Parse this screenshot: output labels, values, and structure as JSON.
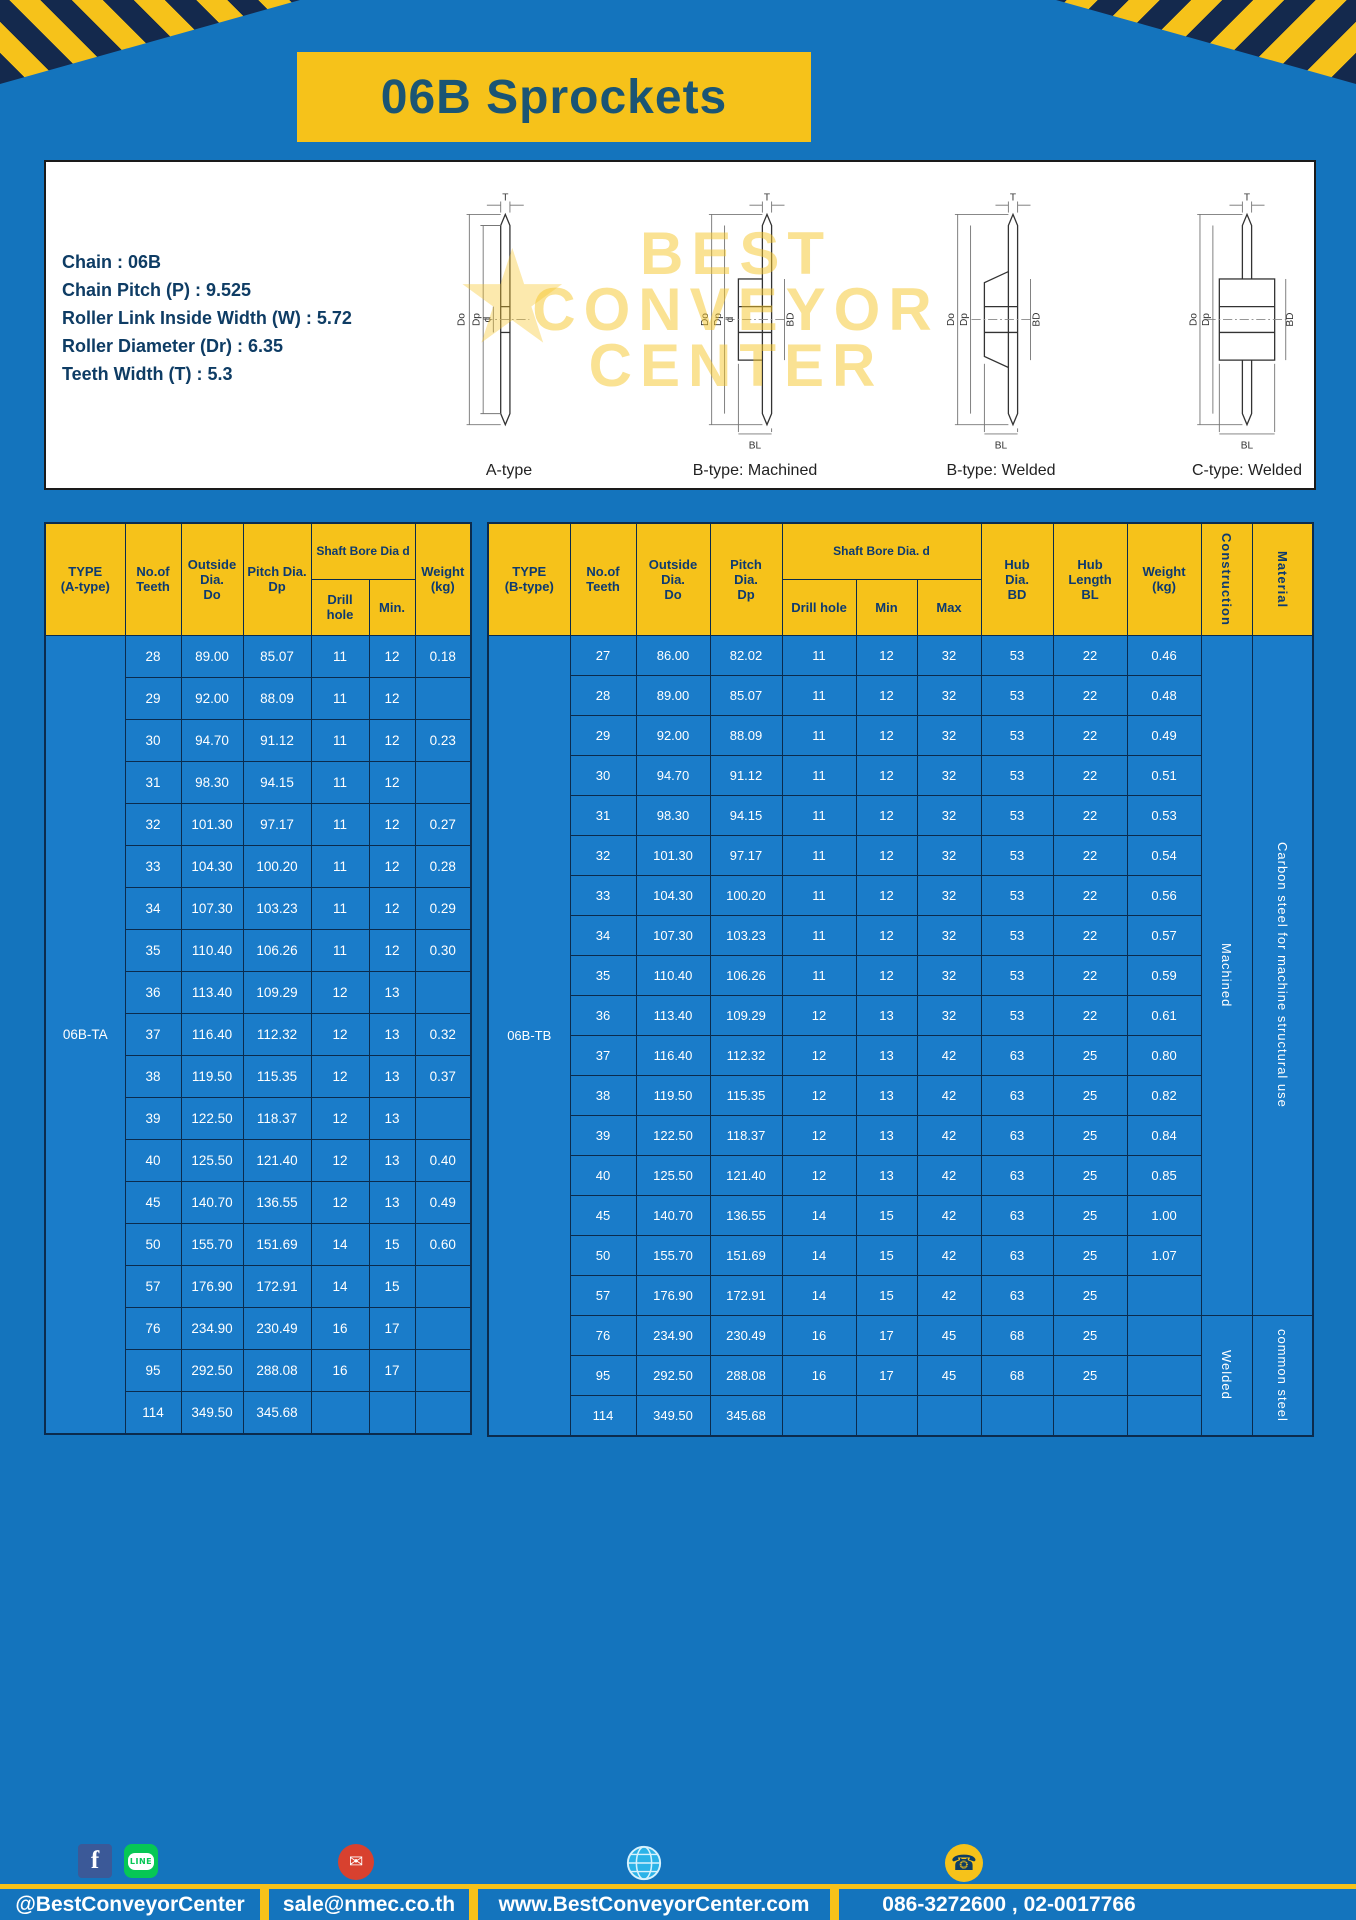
{
  "page": {
    "title": "06B Sprockets"
  },
  "colors": {
    "page_bg": "#1474bd",
    "accent_yellow": "#f6c21a",
    "cell_blue": "#1a7cc9",
    "header_text": "#0d3a70",
    "title_text": "#1b5574"
  },
  "specs": {
    "lines": [
      "Chain : 06B",
      "Chain Pitch (P) : 9.525",
      "Roller Link Inside Width (W) : 5.72",
      "Roller Diameter (Dr) : 6.35",
      "Teeth Width (T) : 5.3"
    ]
  },
  "drawings": {
    "labels": [
      "A-type",
      "B-type: Machined",
      "B-type: Welded",
      "C-type: Welded"
    ],
    "dims": {
      "T": "T",
      "Do": "Do",
      "Dp": "Dp",
      "d": "d",
      "BD": "BD",
      "BL": "BL"
    },
    "watermark_lines": [
      "BEST",
      "CONVEYOR",
      "CENTER"
    ],
    "watermark_star": "★"
  },
  "table_a": {
    "type_label": "06B-TA",
    "group_header": "Shaft Bore Dia d",
    "headers": {
      "type": [
        "TYPE",
        "(A-type)"
      ],
      "teeth": [
        "No.of",
        "Teeth"
      ],
      "outside": [
        "Outside",
        "Dia.",
        "Do"
      ],
      "pitch": [
        "Pitch Dia.",
        "Dp"
      ],
      "drill": "Drill hole",
      "min": "Min.",
      "weight": [
        "Weight",
        "(kg)"
      ]
    },
    "rows": [
      [
        "28",
        "89.00",
        "85.07",
        "11",
        "12",
        "0.18"
      ],
      [
        "29",
        "92.00",
        "88.09",
        "11",
        "12",
        ""
      ],
      [
        "30",
        "94.70",
        "91.12",
        "11",
        "12",
        "0.23"
      ],
      [
        "31",
        "98.30",
        "94.15",
        "11",
        "12",
        ""
      ],
      [
        "32",
        "101.30",
        "97.17",
        "11",
        "12",
        "0.27"
      ],
      [
        "33",
        "104.30",
        "100.20",
        "11",
        "12",
        "0.28"
      ],
      [
        "34",
        "107.30",
        "103.23",
        "11",
        "12",
        "0.29"
      ],
      [
        "35",
        "110.40",
        "106.26",
        "11",
        "12",
        "0.30"
      ],
      [
        "36",
        "113.40",
        "109.29",
        "12",
        "13",
        ""
      ],
      [
        "37",
        "116.40",
        "112.32",
        "12",
        "13",
        "0.32"
      ],
      [
        "38",
        "119.50",
        "115.35",
        "12",
        "13",
        "0.37"
      ],
      [
        "39",
        "122.50",
        "118.37",
        "12",
        "13",
        ""
      ],
      [
        "40",
        "125.50",
        "121.40",
        "12",
        "13",
        "0.40"
      ],
      [
        "45",
        "140.70",
        "136.55",
        "12",
        "13",
        "0.49"
      ],
      [
        "50",
        "155.70",
        "151.69",
        "14",
        "15",
        "0.60"
      ],
      [
        "57",
        "176.90",
        "172.91",
        "14",
        "15",
        ""
      ],
      [
        "76",
        "234.90",
        "230.49",
        "16",
        "17",
        ""
      ],
      [
        "95",
        "292.50",
        "288.08",
        "16",
        "17",
        ""
      ],
      [
        "114",
        "349.50",
        "345.68",
        "",
        "",
        ""
      ]
    ]
  },
  "table_b": {
    "type_label": "06B-TB",
    "group_header": "Shaft Bore Dia. d",
    "headers": {
      "type": [
        "TYPE",
        "(B-type)"
      ],
      "teeth": [
        "No.of",
        "Teeth"
      ],
      "outside": [
        "Outside",
        "Dia.",
        "Do"
      ],
      "pitch": [
        "Pitch",
        "Dia.",
        "Dp"
      ],
      "drill": "Drill hole",
      "min": "Min",
      "max": "Max",
      "hub_dia": [
        "Hub",
        "Dia.",
        "BD"
      ],
      "hub_len": [
        "Hub",
        "Length",
        "BL"
      ],
      "weight": [
        "Weight",
        "(kg)"
      ],
      "construction": "Construction",
      "material": "Material"
    },
    "rows": [
      [
        "27",
        "86.00",
        "82.02",
        "11",
        "12",
        "32",
        "53",
        "22",
        "0.46"
      ],
      [
        "28",
        "89.00",
        "85.07",
        "11",
        "12",
        "32",
        "53",
        "22",
        "0.48"
      ],
      [
        "29",
        "92.00",
        "88.09",
        "11",
        "12",
        "32",
        "53",
        "22",
        "0.49"
      ],
      [
        "30",
        "94.70",
        "91.12",
        "11",
        "12",
        "32",
        "53",
        "22",
        "0.51"
      ],
      [
        "31",
        "98.30",
        "94.15",
        "11",
        "12",
        "32",
        "53",
        "22",
        "0.53"
      ],
      [
        "32",
        "101.30",
        "97.17",
        "11",
        "12",
        "32",
        "53",
        "22",
        "0.54"
      ],
      [
        "33",
        "104.30",
        "100.20",
        "11",
        "12",
        "32",
        "53",
        "22",
        "0.56"
      ],
      [
        "34",
        "107.30",
        "103.23",
        "11",
        "12",
        "32",
        "53",
        "22",
        "0.57"
      ],
      [
        "35",
        "110.40",
        "106.26",
        "11",
        "12",
        "32",
        "53",
        "22",
        "0.59"
      ],
      [
        "36",
        "113.40",
        "109.29",
        "12",
        "13",
        "32",
        "53",
        "22",
        "0.61"
      ],
      [
        "37",
        "116.40",
        "112.32",
        "12",
        "13",
        "42",
        "63",
        "25",
        "0.80"
      ],
      [
        "38",
        "119.50",
        "115.35",
        "12",
        "13",
        "42",
        "63",
        "25",
        "0.82"
      ],
      [
        "39",
        "122.50",
        "118.37",
        "12",
        "13",
        "42",
        "63",
        "25",
        "0.84"
      ],
      [
        "40",
        "125.50",
        "121.40",
        "12",
        "13",
        "42",
        "63",
        "25",
        "0.85"
      ],
      [
        "45",
        "140.70",
        "136.55",
        "14",
        "15",
        "42",
        "63",
        "25",
        "1.00"
      ],
      [
        "50",
        "155.70",
        "151.69",
        "14",
        "15",
        "42",
        "63",
        "25",
        "1.07"
      ],
      [
        "57",
        "176.90",
        "172.91",
        "14",
        "15",
        "42",
        "63",
        "25",
        ""
      ],
      [
        "76",
        "234.90",
        "230.49",
        "16",
        "17",
        "45",
        "68",
        "25",
        ""
      ],
      [
        "95",
        "292.50",
        "288.08",
        "16",
        "17",
        "45",
        "68",
        "25",
        ""
      ],
      [
        "114",
        "349.50",
        "345.68",
        "",
        "",
        "",
        "",
        "",
        ""
      ]
    ],
    "construction_groups": [
      {
        "label": "Machined",
        "rows": 17
      },
      {
        "label": "Welded",
        "rows": 3
      }
    ],
    "material_groups": [
      {
        "label": "Carbon steel for machine structural use",
        "rows": 17
      },
      {
        "label": "common steel",
        "rows": 3
      }
    ]
  },
  "footer": {
    "line_label": "LINE",
    "facebook_handle": "@BestConveyorCenter",
    "email": "sale@nmec.co.th",
    "website": "www.BestConveyorCenter.com",
    "phone": "086-3272600 , 02-0017766"
  }
}
